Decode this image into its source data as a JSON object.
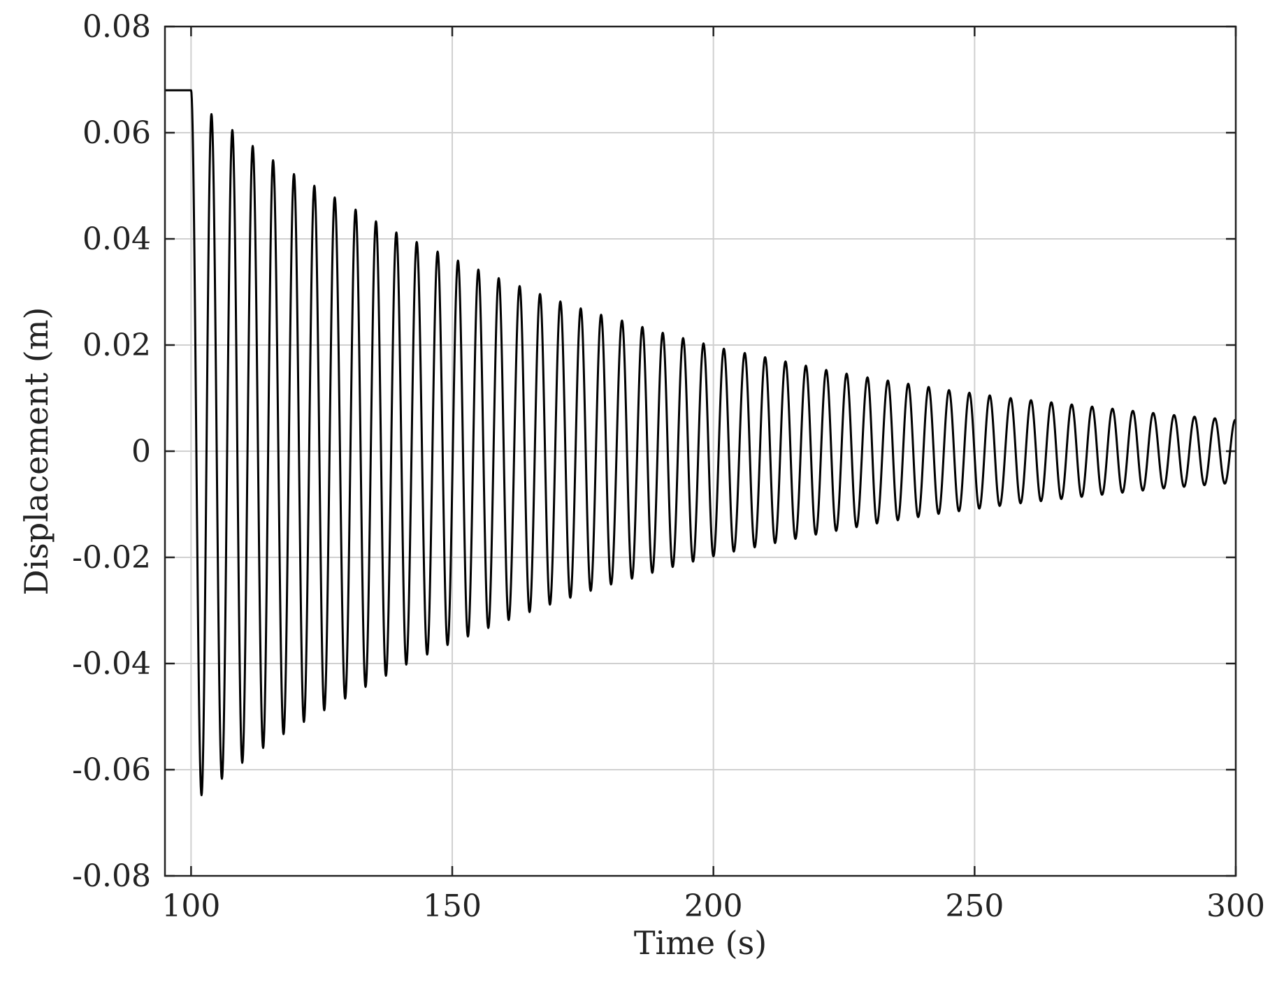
{
  "chart_data": {
    "type": "line",
    "title": "",
    "xlabel": "Time (s)",
    "ylabel": "Displacement (m)",
    "xlim": [
      95,
      300
    ],
    "ylim": [
      -0.08,
      0.08
    ],
    "xticks": [
      100,
      150,
      200,
      250,
      300
    ],
    "xtick_labels": [
      "100",
      "150",
      "200",
      "250",
      "300"
    ],
    "yticks": [
      -0.08,
      -0.06,
      -0.04,
      -0.02,
      0,
      0.02,
      0.04,
      0.06,
      0.08
    ],
    "ytick_labels": [
      "-0.08",
      "-0.06",
      "-0.04",
      "-0.02",
      "0",
      "0.02",
      "0.04",
      "0.06",
      "0.08"
    ],
    "grid": true,
    "legend": "none",
    "line_color": "#000000",
    "grid_color": "#d0d0d0",
    "series": [
      {
        "initial_hold": {
          "t_start": 95,
          "t_end": 100,
          "value": 0.068
        },
        "release_time": 100,
        "period_s": 4.0,
        "positive_peaks": [
          [
            103.9,
            0.0635
          ],
          [
            107.9,
            0.0605
          ],
          [
            111.8,
            0.0575
          ],
          [
            115.7,
            0.0548
          ],
          [
            119.7,
            0.0522
          ],
          [
            123.6,
            0.05
          ],
          [
            127.5,
            0.0478
          ],
          [
            131.5,
            0.0455
          ],
          [
            135.4,
            0.0433
          ],
          [
            139.3,
            0.0412
          ],
          [
            143.2,
            0.0394
          ],
          [
            147.2,
            0.0376
          ],
          [
            151.1,
            0.0359
          ],
          [
            155.0,
            0.0342
          ],
          [
            158.9,
            0.0326
          ],
          [
            162.9,
            0.0311
          ],
          [
            166.8,
            0.0296
          ],
          [
            170.7,
            0.0282
          ],
          [
            174.6,
            0.0269
          ],
          [
            178.5,
            0.0257
          ],
          [
            182.5,
            0.0246
          ],
          [
            186.4,
            0.0234
          ],
          [
            190.3,
            0.0223
          ],
          [
            194.2,
            0.0213
          ],
          [
            198.1,
            0.0203
          ],
          [
            202.0,
            0.0193
          ],
          [
            206.0,
            0.0185
          ],
          [
            209.9,
            0.0177
          ],
          [
            213.8,
            0.0169
          ],
          [
            217.7,
            0.0161
          ],
          [
            221.6,
            0.0153
          ],
          [
            225.5,
            0.0146
          ],
          [
            229.5,
            0.0139
          ],
          [
            233.4,
            0.0133
          ],
          [
            237.3,
            0.0127
          ],
          [
            241.2,
            0.0121
          ],
          [
            245.1,
            0.0115
          ],
          [
            249.0,
            0.011
          ],
          [
            252.9,
            0.0105
          ],
          [
            256.9,
            0.01
          ],
          [
            260.8,
            0.0096
          ],
          [
            264.7,
            0.0092
          ],
          [
            268.6,
            0.0088
          ],
          [
            272.5,
            0.0084
          ],
          [
            276.4,
            0.008
          ],
          [
            280.3,
            0.0076
          ],
          [
            284.2,
            0.0072
          ],
          [
            288.2,
            0.0068
          ],
          [
            292.1,
            0.0065
          ],
          [
            296.0,
            0.0062
          ],
          [
            299.9,
            0.0059
          ]
        ],
        "negative_peaks": [
          [
            102.0,
            -0.0648
          ],
          [
            105.9,
            -0.0617
          ],
          [
            109.8,
            -0.0587
          ],
          [
            113.8,
            -0.0559
          ],
          [
            117.7,
            -0.0533
          ],
          [
            121.6,
            -0.051
          ],
          [
            125.5,
            -0.0488
          ],
          [
            129.5,
            -0.0466
          ],
          [
            133.4,
            -0.0444
          ],
          [
            137.3,
            -0.0423
          ],
          [
            141.2,
            -0.0402
          ],
          [
            145.2,
            -0.0383
          ],
          [
            149.1,
            -0.0365
          ],
          [
            153.0,
            -0.0349
          ],
          [
            156.9,
            -0.0333
          ],
          [
            160.8,
            -0.0318
          ],
          [
            164.8,
            -0.0303
          ],
          [
            168.7,
            -0.0289
          ],
          [
            172.6,
            -0.0276
          ],
          [
            176.5,
            -0.0263
          ],
          [
            180.4,
            -0.0251
          ],
          [
            184.4,
            -0.024
          ],
          [
            188.3,
            -0.0229
          ],
          [
            192.2,
            -0.0218
          ],
          [
            196.1,
            -0.0208
          ],
          [
            200.0,
            -0.0198
          ],
          [
            203.9,
            -0.0189
          ],
          [
            207.9,
            -0.0181
          ],
          [
            211.8,
            -0.0173
          ],
          [
            215.7,
            -0.0165
          ],
          [
            219.6,
            -0.0157
          ],
          [
            223.5,
            -0.015
          ],
          [
            227.4,
            -0.0143
          ],
          [
            231.3,
            -0.0136
          ],
          [
            235.3,
            -0.013
          ],
          [
            239.2,
            -0.0124
          ],
          [
            243.1,
            -0.0118
          ],
          [
            247.0,
            -0.0113
          ],
          [
            250.9,
            -0.0108
          ],
          [
            254.8,
            -0.0103
          ],
          [
            258.8,
            -0.0098
          ],
          [
            262.7,
            -0.0094
          ],
          [
            266.6,
            -0.009
          ],
          [
            270.5,
            -0.0086
          ],
          [
            274.4,
            -0.0082
          ],
          [
            278.3,
            -0.0078
          ],
          [
            282.2,
            -0.0074
          ],
          [
            286.2,
            -0.007
          ],
          [
            290.1,
            -0.0067
          ],
          [
            294.0,
            -0.0064
          ],
          [
            297.9,
            -0.0061
          ]
        ],
        "end_point": [
          300,
          -0.0058
        ]
      }
    ]
  }
}
